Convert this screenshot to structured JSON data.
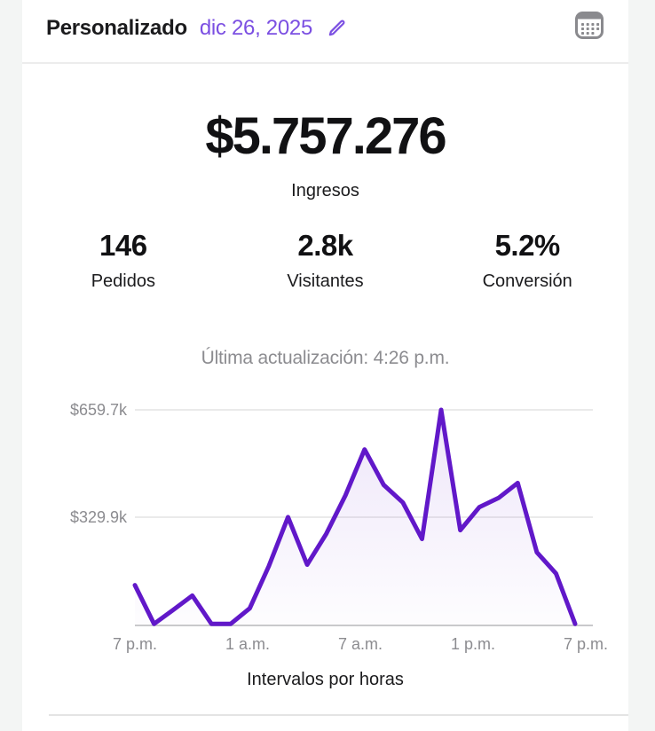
{
  "header": {
    "title": "Personalizado",
    "date_value": "dic 26, 2025"
  },
  "summary": {
    "revenue": "$5.757.276",
    "revenue_label": "Ingresos"
  },
  "stats": [
    {
      "value": "146",
      "label": "Pedidos"
    },
    {
      "value": "2.8k",
      "label": "Visitantes"
    },
    {
      "value": "5.2%",
      "label": "Conversión"
    }
  ],
  "last_updated": "Última actualización: 4:26 p.m.",
  "chart_data": {
    "type": "area",
    "title": "",
    "xlabel": "Intervalos por horas",
    "ylabel": "",
    "x": [
      "7 p.m.",
      "8 p.m.",
      "9 p.m.",
      "10 p.m.",
      "11 p.m.",
      "12 a.m.",
      "1 a.m.",
      "2 a.m.",
      "3 a.m.",
      "4 a.m.",
      "5 a.m.",
      "6 a.m.",
      "7 a.m.",
      "8 a.m.",
      "9 a.m.",
      "10 a.m.",
      "11 a.m.",
      "12 p.m.",
      "1 p.m.",
      "2 p.m.",
      "3 p.m.",
      "4 p.m.",
      "5 p.m.",
      "6 p.m."
    ],
    "values_k": [
      121,
      2,
      45,
      89,
      2,
      2,
      50,
      180,
      330,
      184,
      279,
      397,
      538,
      429,
      375,
      263,
      659.7,
      290,
      361,
      389,
      435,
      222,
      157,
      2
    ],
    "ylim": [
      0,
      659.7
    ],
    "yticks": [
      {
        "label": "$659.7k",
        "value": 659.7
      },
      {
        "label": "$329.9k",
        "value": 329.9
      }
    ],
    "xticks": [
      "7 p.m.",
      "1 a.m.",
      "7 a.m.",
      "1 p.m.",
      "7 p.m."
    ],
    "grid": "horizontal",
    "legend": "none",
    "line_color": "#6118c9"
  },
  "colors": {
    "accent_purple": "#7b4fe2",
    "chart_line": "#6118c9",
    "text_primary": "#1b1b1d",
    "text_secondary": "#8c8c90",
    "gridline": "#e3e3e3",
    "axis_line": "#c9c9cb",
    "page_margin": "#f3f5f4",
    "icon_gray": "#8a8a8e"
  }
}
